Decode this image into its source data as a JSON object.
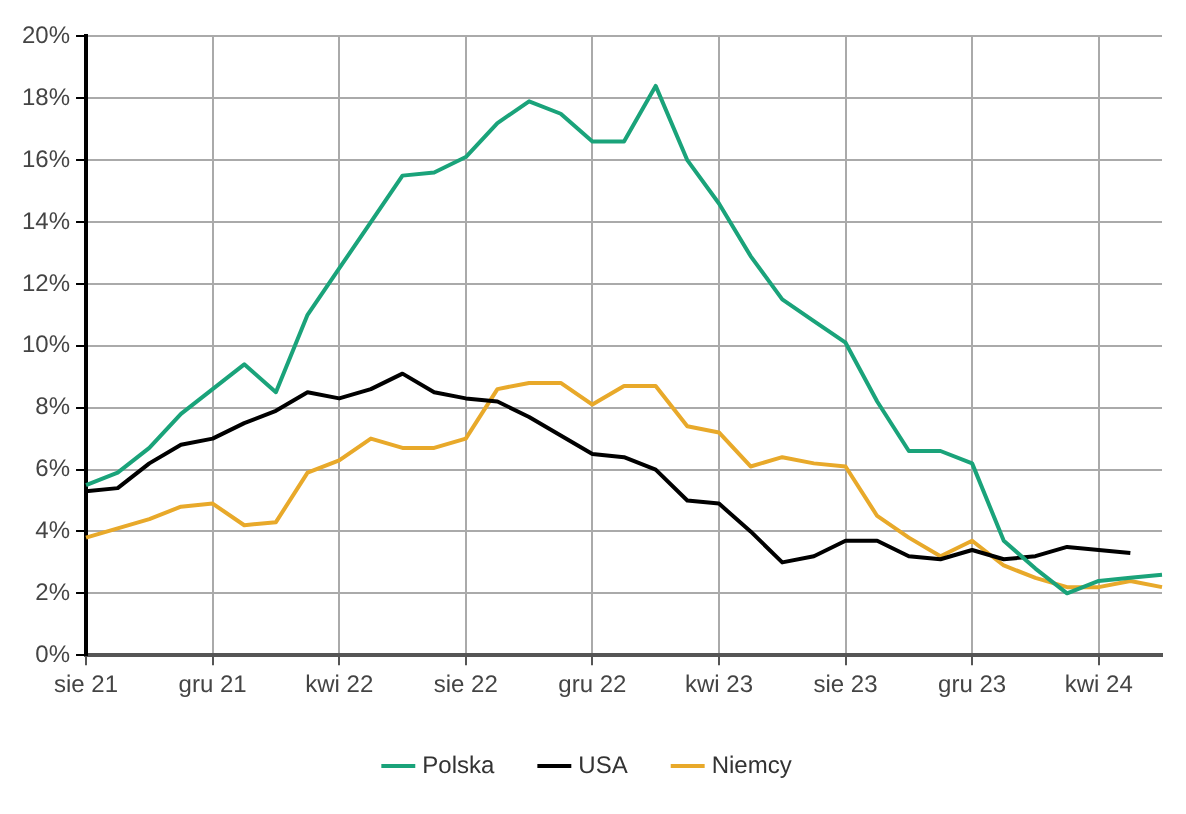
{
  "chart_data": {
    "type": "line",
    "categories": [
      "sie 21",
      null,
      null,
      null,
      "gru 21",
      null,
      null,
      null,
      "kwi 22",
      null,
      null,
      null,
      "sie 22",
      null,
      null,
      null,
      "gru 22",
      null,
      null,
      null,
      "kwi 23",
      null,
      null,
      null,
      "sie 23",
      null,
      null,
      null,
      "gru 23",
      null,
      null,
      null,
      "kwi 24",
      null,
      null
    ],
    "series": [
      {
        "name": "Polska",
        "color": "#1aa37a",
        "values": [
          5.5,
          5.9,
          6.7,
          7.8,
          8.6,
          9.4,
          8.5,
          11.0,
          12.5,
          14.0,
          15.5,
          15.6,
          16.1,
          17.2,
          17.9,
          17.5,
          16.6,
          16.6,
          18.4,
          16.0,
          14.6,
          12.9,
          11.5,
          10.8,
          10.1,
          8.2,
          6.6,
          6.6,
          6.2,
          3.7,
          2.8,
          2.0,
          2.4,
          2.5,
          2.6
        ]
      },
      {
        "name": "USA",
        "color": "#000000",
        "values": [
          5.3,
          5.4,
          6.2,
          6.8,
          7.0,
          7.5,
          7.9,
          8.5,
          8.3,
          8.6,
          9.1,
          8.5,
          8.3,
          8.2,
          7.7,
          7.1,
          6.5,
          6.4,
          6.0,
          5.0,
          4.9,
          4.0,
          3.0,
          3.2,
          3.7,
          3.7,
          3.2,
          3.1,
          3.4,
          3.1,
          3.2,
          3.5,
          3.4,
          3.3,
          null
        ]
      },
      {
        "name": "Niemcy",
        "color": "#e8a92a",
        "values": [
          3.8,
          4.1,
          4.4,
          4.8,
          4.9,
          4.2,
          4.3,
          5.9,
          6.3,
          7.0,
          6.7,
          6.7,
          7.0,
          8.6,
          8.8,
          8.8,
          8.1,
          8.7,
          8.7,
          7.4,
          7.2,
          6.1,
          6.4,
          6.2,
          6.1,
          4.5,
          3.8,
          3.2,
          3.7,
          2.9,
          2.5,
          2.2,
          2.2,
          2.4,
          2.2
        ]
      }
    ],
    "ylim": [
      0,
      20
    ],
    "yticks": [
      {
        "value": 0,
        "label": "0%"
      },
      {
        "value": 2,
        "label": "2%"
      },
      {
        "value": 4,
        "label": "4%"
      },
      {
        "value": 6,
        "label": "6%"
      },
      {
        "value": 8,
        "label": "8%"
      },
      {
        "value": 10,
        "label": "10%"
      },
      {
        "value": 12,
        "label": "12%"
      },
      {
        "value": 14,
        "label": "14%"
      },
      {
        "value": 16,
        "label": "16%"
      },
      {
        "value": 18,
        "label": "18%"
      },
      {
        "value": 20,
        "label": "20%"
      }
    ],
    "grid": true,
    "legend": "bottom",
    "marker": "none",
    "line_style": "solid"
  }
}
